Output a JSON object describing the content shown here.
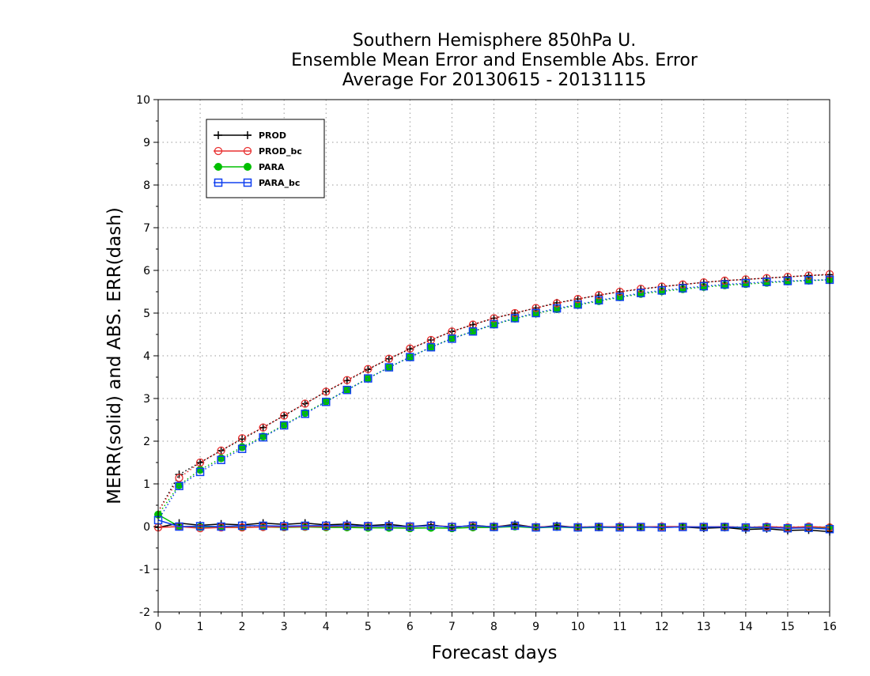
{
  "chart_data": {
    "type": "line",
    "title_lines": [
      "Southern Hemisphere 850hPa U.",
      "Ensemble Mean Error and Ensemble Abs. Error",
      "Average For 20130615 - 20131115"
    ],
    "xlabel": "Forecast days",
    "ylabel": "MERR(solid) and ABS. ERR(dash)",
    "xlim": [
      0,
      16
    ],
    "ylim": [
      -2,
      10
    ],
    "xticks": [
      "0",
      "1",
      "2",
      "3",
      "4",
      "5",
      "6",
      "7",
      "8",
      "9",
      "10",
      "11",
      "12",
      "13",
      "14",
      "15",
      "16"
    ],
    "yticks": [
      "-2",
      "-1",
      "0",
      "1",
      "2",
      "3",
      "4",
      "5",
      "6",
      "7",
      "8",
      "9",
      "10"
    ],
    "grid": true,
    "legend_position": "top-left",
    "x": [
      0,
      0.5,
      1,
      1.5,
      2,
      2.5,
      3,
      3.5,
      4,
      4.5,
      5,
      5.5,
      6,
      6.5,
      7,
      7.5,
      8,
      8.5,
      9,
      9.5,
      10,
      10.5,
      11,
      11.5,
      12,
      12.5,
      13,
      13.5,
      14,
      14.5,
      15,
      15.5,
      16
    ],
    "series": [
      {
        "name": "PROD",
        "color": "#000000",
        "marker": "plus",
        "mean_error": [
          -0.02,
          0.08,
          0.03,
          0.06,
          0.04,
          0.08,
          0.05,
          0.08,
          0.04,
          0.06,
          0.02,
          0.05,
          0.0,
          0.04,
          -0.02,
          0.03,
          -0.01,
          0.05,
          -0.02,
          0.02,
          -0.02,
          0.0,
          -0.02,
          -0.01,
          -0.02,
          -0.01,
          -0.04,
          -0.02,
          -0.07,
          -0.05,
          -0.09,
          -0.08,
          -0.12
        ],
        "abs_error": [
          0.35,
          1.22,
          1.5,
          1.78,
          2.05,
          2.32,
          2.6,
          2.88,
          3.16,
          3.42,
          3.68,
          3.93,
          4.16,
          4.37,
          4.57,
          4.73,
          4.88,
          5.0,
          5.12,
          5.24,
          5.33,
          5.42,
          5.5,
          5.56,
          5.62,
          5.67,
          5.72,
          5.76,
          5.79,
          5.82,
          5.85,
          5.88,
          5.9
        ]
      },
      {
        "name": "PROD_bc",
        "color": "#e83030",
        "marker": "circle",
        "mean_error": [
          -0.02,
          0.0,
          -0.04,
          -0.02,
          -0.02,
          -0.01,
          -0.01,
          0.0,
          0.0,
          0.01,
          0.0,
          0.01,
          -0.01,
          0.02,
          0.0,
          0.01,
          0.0,
          0.02,
          -0.01,
          0.0,
          -0.01,
          -0.01,
          0.0,
          -0.01,
          0.0,
          0.0,
          -0.01,
          0.0,
          -0.02,
          0.0,
          -0.02,
          0.0,
          -0.02
        ],
        "abs_error": [
          0.35,
          1.14,
          1.5,
          1.78,
          2.07,
          2.32,
          2.6,
          2.88,
          3.16,
          3.43,
          3.69,
          3.93,
          4.17,
          4.37,
          4.57,
          4.73,
          4.88,
          5.0,
          5.12,
          5.23,
          5.33,
          5.42,
          5.5,
          5.57,
          5.62,
          5.67,
          5.72,
          5.76,
          5.79,
          5.82,
          5.85,
          5.88,
          5.91
        ]
      },
      {
        "name": "PARA",
        "color": "#00c000",
        "marker": "filled-circle",
        "mean_error": [
          0.28,
          0.0,
          -0.01,
          -0.01,
          -0.02,
          -0.01,
          -0.02,
          -0.01,
          -0.02,
          -0.02,
          -0.03,
          -0.03,
          -0.04,
          -0.03,
          -0.04,
          -0.02,
          -0.02,
          0.0,
          -0.03,
          -0.01,
          -0.03,
          -0.02,
          -0.02,
          -0.02,
          -0.01,
          -0.01,
          -0.02,
          -0.02,
          -0.03,
          -0.02,
          -0.04,
          -0.02,
          -0.03
        ],
        "abs_error": [
          0.28,
          0.97,
          1.33,
          1.6,
          1.86,
          2.11,
          2.38,
          2.66,
          2.93,
          3.2,
          3.47,
          3.73,
          3.97,
          4.2,
          4.41,
          4.57,
          4.73,
          4.87,
          4.99,
          5.09,
          5.19,
          5.28,
          5.37,
          5.45,
          5.51,
          5.56,
          5.61,
          5.65,
          5.68,
          5.71,
          5.74,
          5.76,
          5.78
        ]
      },
      {
        "name": "PARA_bc",
        "color": "#1040f0",
        "marker": "square",
        "mean_error": [
          0.15,
          0.0,
          0.01,
          0.0,
          0.02,
          0.02,
          0.01,
          0.02,
          0.02,
          0.02,
          0.01,
          0.01,
          0.0,
          0.02,
          -0.01,
          0.02,
          -0.01,
          0.02,
          -0.02,
          0.0,
          -0.02,
          -0.01,
          -0.02,
          -0.01,
          -0.02,
          -0.01,
          -0.01,
          -0.01,
          -0.02,
          -0.02,
          -0.04,
          -0.03,
          -0.06
        ],
        "abs_error": [
          0.15,
          0.95,
          1.28,
          1.56,
          1.82,
          2.09,
          2.37,
          2.64,
          2.92,
          3.2,
          3.47,
          3.73,
          3.97,
          4.2,
          4.4,
          4.57,
          4.74,
          4.88,
          5.0,
          5.11,
          5.2,
          5.3,
          5.38,
          5.47,
          5.53,
          5.58,
          5.63,
          5.67,
          5.7,
          5.73,
          5.75,
          5.77,
          5.78
        ]
      }
    ]
  }
}
